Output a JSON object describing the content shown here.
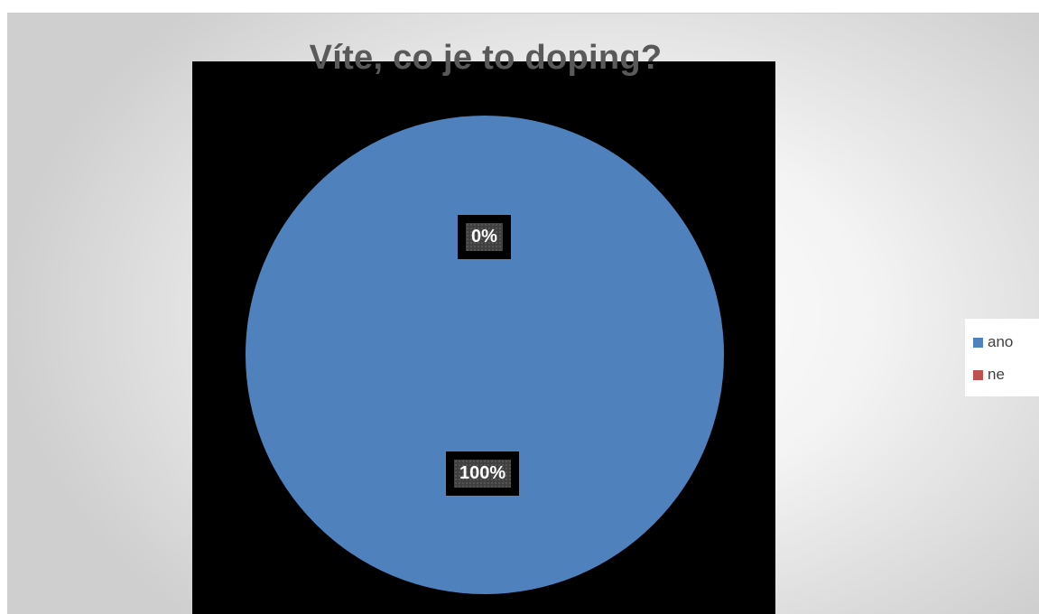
{
  "chart_data": {
    "type": "pie",
    "title": "Víte, co je to doping?",
    "categories": [
      "ano",
      "ne"
    ],
    "values": [
      100,
      0
    ],
    "data_labels": [
      "100%",
      "0%"
    ],
    "colors": [
      "#4f81bd",
      "#c0504d"
    ],
    "legend_position": "right"
  }
}
